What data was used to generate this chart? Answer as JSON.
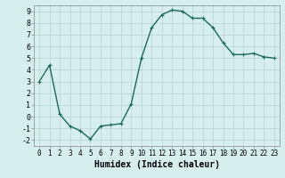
{
  "x": [
    0,
    1,
    2,
    3,
    4,
    5,
    6,
    7,
    8,
    9,
    10,
    11,
    12,
    13,
    14,
    15,
    16,
    17,
    18,
    19,
    20,
    21,
    22,
    23
  ],
  "y": [
    3.0,
    4.4,
    0.2,
    -0.8,
    -1.2,
    -1.9,
    -0.8,
    -0.7,
    -0.6,
    1.1,
    5.0,
    7.6,
    8.7,
    9.1,
    9.0,
    8.4,
    8.4,
    7.6,
    6.3,
    5.3,
    5.3,
    5.4,
    5.1,
    5.0
  ],
  "line_color": "#1a6b5a",
  "marker": "+",
  "markersize": 3,
  "linewidth": 1.0,
  "bg_color": "#d6eeee",
  "grid_color": "#b8d4d4",
  "xlabel": "Humidex (Indice chaleur)",
  "xlim": [
    -0.5,
    23.5
  ],
  "ylim": [
    -2.5,
    9.5
  ],
  "yticks": [
    -2,
    -1,
    0,
    1,
    2,
    3,
    4,
    5,
    6,
    7,
    8,
    9
  ],
  "xticks": [
    0,
    1,
    2,
    3,
    4,
    5,
    6,
    7,
    8,
    9,
    10,
    11,
    12,
    13,
    14,
    15,
    16,
    17,
    18,
    19,
    20,
    21,
    22,
    23
  ],
  "xlabel_fontsize": 7,
  "tick_fontsize": 5.5,
  "ytick_fontsize": 6
}
